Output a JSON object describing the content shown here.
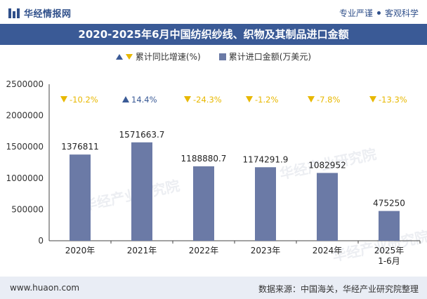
{
  "header": {
    "logo_text": "华经情报网",
    "slogan_left": "专业严谨",
    "slogan_right": "客观科学"
  },
  "title": "2020-2025年6月中国纺织纱线、织物及其制品进口金额",
  "legend": {
    "growth_label": "累计同比增速(%)",
    "amount_label": "累计进口金额(万美元)"
  },
  "footer": {
    "website": "www.huaon.com",
    "source": "数据来源：中国海关，华经产业研究院整理"
  },
  "watermark": "华经产业研究院",
  "chart_data": {
    "type": "bar",
    "categories": [
      "2020年",
      "2021年",
      "2022年",
      "2023年",
      "2024年",
      "2025年\n1-6月"
    ],
    "series": [
      {
        "name": "累计进口金额(万美元)",
        "values": [
          1376811,
          1571663.7,
          1188880.7,
          1174291.9,
          1082952,
          475250
        ],
        "value_labels": [
          "1376811",
          "1571663.7",
          "1188880.7",
          "1174291.9",
          "1082952",
          "475250"
        ]
      },
      {
        "name": "累计同比增速(%)",
        "values": [
          -10.2,
          14.4,
          -24.3,
          -1.2,
          -7.8,
          -13.3
        ],
        "value_labels": [
          "-10.2%",
          "14.4%",
          "-24.3%",
          "-1.2%",
          "-7.8%",
          "-13.3%"
        ]
      }
    ],
    "yticks": [
      "0",
      "500000",
      "1000000",
      "1500000",
      "2000000",
      "2500000"
    ],
    "ylim": [
      0,
      2500000
    ],
    "colors": {
      "bar": "#6b7aa6",
      "up": "#3a5a96",
      "down": "#e8b800"
    }
  }
}
